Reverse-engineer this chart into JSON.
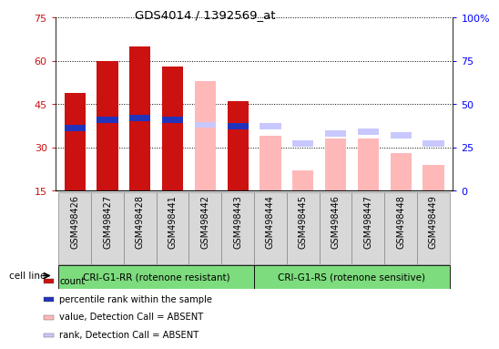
{
  "title": "GDS4014 / 1392569_at",
  "samples": [
    "GSM498426",
    "GSM498427",
    "GSM498428",
    "GSM498441",
    "GSM498442",
    "GSM498443",
    "GSM498444",
    "GSM498445",
    "GSM498446",
    "GSM498447",
    "GSM498448",
    "GSM498449"
  ],
  "groups": [
    "CRI-G1-RR (rotenone resistant)",
    "CRI-G1-RS (rotenone sensitive)"
  ],
  "group_sizes": [
    6,
    6
  ],
  "count_values": [
    49,
    60,
    65,
    58,
    null,
    46,
    null,
    null,
    null,
    null,
    null,
    null
  ],
  "rank_values": [
    36,
    41,
    42,
    41,
    null,
    37,
    null,
    null,
    null,
    null,
    null,
    null
  ],
  "value_absent": [
    null,
    null,
    null,
    null,
    53,
    null,
    34,
    22,
    33,
    33,
    28,
    24
  ],
  "rank_absent": [
    null,
    null,
    null,
    null,
    38,
    null,
    37,
    27,
    33,
    34,
    32,
    27
  ],
  "left_ylim": [
    15,
    75
  ],
  "left_yticks": [
    15,
    30,
    45,
    60,
    75
  ],
  "right_ylim": [
    0,
    100
  ],
  "right_yticks": [
    0,
    25,
    50,
    75,
    100
  ],
  "right_yticklabels": [
    "0",
    "25",
    "50",
    "75",
    "100%"
  ],
  "count_color": "#cc1111",
  "rank_color": "#2233bb",
  "value_absent_color": "#ffb8b8",
  "rank_absent_color": "#c8c8ff",
  "bar_width": 0.65,
  "rank_bar_height": 2.2,
  "background_color": "#f0f0f0",
  "plot_bg": "#ffffff",
  "cell_line_label": "cell line",
  "legend_items": [
    {
      "label": "count",
      "color": "#cc1111"
    },
    {
      "label": "percentile rank within the sample",
      "color": "#2233bb"
    },
    {
      "label": "value, Detection Call = ABSENT",
      "color": "#ffb8b8"
    },
    {
      "label": "rank, Detection Call = ABSENT",
      "color": "#c8c8ff"
    }
  ]
}
